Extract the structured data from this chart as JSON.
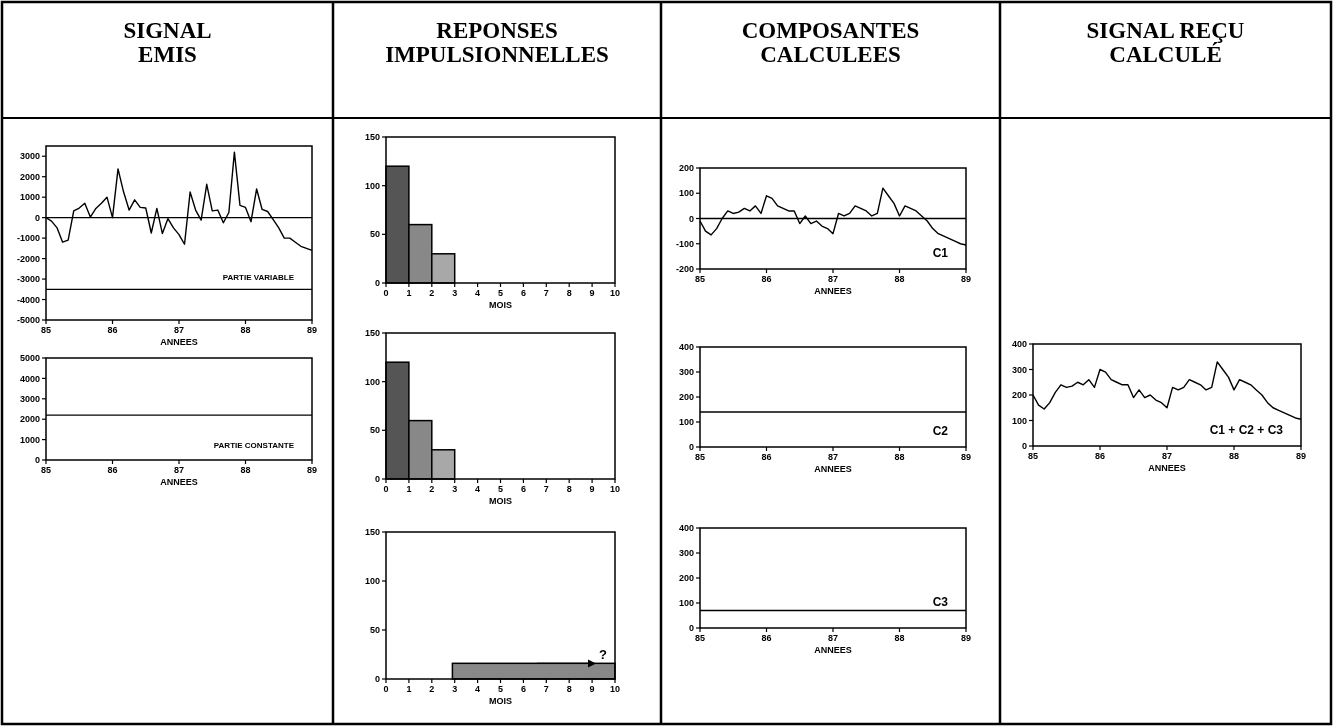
{
  "chart_data": [
    {
      "type": "line",
      "title": "SIGNAL\nEMIS",
      "xlabel": "ANNEES",
      "annotations": [
        "PARTIE VARIABLE"
      ],
      "xlim": [
        85,
        89
      ],
      "xticks": [
        85,
        86,
        87,
        88,
        89
      ],
      "ylim": [
        -5000,
        3500
      ],
      "yticks": [
        -5000,
        -4000,
        -3000,
        -2000,
        -1000,
        0,
        1000,
        2000,
        3000
      ],
      "grid": false,
      "ref_lines": [
        {
          "axis": "y",
          "value": 0
        },
        {
          "axis": "y",
          "value": -3500
        }
      ],
      "x": [
        85,
        85.083,
        85.167,
        85.25,
        85.333,
        85.417,
        85.5,
        85.583,
        85.667,
        85.75,
        85.833,
        85.917,
        86,
        86.083,
        86.167,
        86.25,
        86.333,
        86.417,
        86.5,
        86.583,
        86.667,
        86.75,
        86.833,
        86.917,
        87,
        87.083,
        87.167,
        87.25,
        87.333,
        87.417,
        87.5,
        87.583,
        87.667,
        87.75,
        87.833,
        87.917,
        88,
        88.083,
        88.167,
        88.25,
        88.333,
        88.417,
        88.5,
        88.583,
        88.667,
        88.75,
        88.833,
        88.917,
        89
      ],
      "series": [
        {
          "color": "#000000",
          "values": [
            0,
            -170,
            -500,
            -1200,
            -1100,
            330,
            470,
            700,
            30,
            450,
            700,
            1000,
            0,
            2380,
            1250,
            370,
            870,
            500,
            470,
            -750,
            450,
            -780,
            -50,
            -500,
            -830,
            -1300,
            1250,
            370,
            -120,
            1630,
            330,
            370,
            -250,
            250,
            3200,
            600,
            500,
            -200,
            1400,
            400,
            300,
            -100,
            -500,
            -1000,
            -1000,
            -1200,
            -1400,
            -1500,
            -1600
          ]
        }
      ]
    },
    {
      "type": "line",
      "xlabel": "ANNEES",
      "annotations": [
        "PARTIE CONSTANTE"
      ],
      "xlim": [
        85,
        89
      ],
      "xticks": [
        85,
        86,
        87,
        88,
        89
      ],
      "ylim": [
        0,
        5000
      ],
      "yticks": [
        0,
        1000,
        2000,
        3000,
        4000,
        5000
      ],
      "grid": false,
      "x": [
        85,
        89
      ],
      "series": [
        {
          "color": "#000000",
          "values": [
            2200,
            2200
          ]
        }
      ]
    },
    {
      "type": "histogram",
      "title": "REPONSES\nIMPULSIONNELLES",
      "xlabel": "MOIS",
      "xlim": [
        0,
        10
      ],
      "xticks": [
        0,
        1,
        2,
        3,
        4,
        5,
        6,
        7,
        8,
        9,
        10
      ],
      "ylim": [
        0,
        150
      ],
      "yticks": [
        0,
        50,
        100,
        150
      ],
      "grid": false,
      "bins": [
        0,
        1,
        2,
        3
      ],
      "values": [
        120,
        60,
        30
      ],
      "colors": [
        "#555555",
        "#888888",
        "#a8a8a8"
      ]
    },
    {
      "type": "histogram",
      "xlabel": "MOIS",
      "xlim": [
        0,
        10
      ],
      "xticks": [
        0,
        1,
        2,
        3,
        4,
        5,
        6,
        7,
        8,
        9,
        10
      ],
      "ylim": [
        0,
        150
      ],
      "yticks": [
        0,
        50,
        100,
        150
      ],
      "grid": false,
      "bins": [
        0,
        1,
        2,
        3
      ],
      "values": [
        120,
        60,
        30
      ],
      "colors": [
        "#555555",
        "#888888",
        "#a8a8a8"
      ]
    },
    {
      "type": "histogram",
      "xlabel": "MOIS",
      "annotations": [
        {
          "text": "?",
          "x": 9.3,
          "y": 20
        }
      ],
      "xlim": [
        0,
        10
      ],
      "xticks": [
        0,
        1,
        2,
        3,
        4,
        5,
        6,
        7,
        8,
        9,
        10
      ],
      "ylim": [
        0,
        150
      ],
      "yticks": [
        0,
        50,
        100,
        150
      ],
      "grid": false,
      "bins": [
        2.9,
        10
      ],
      "values": [
        16
      ],
      "colors": [
        "#888888"
      ]
    },
    {
      "type": "line",
      "title": "COMPOSANTES\nCALCULEES",
      "xlabel": "ANNEES",
      "annotations": [
        "C1"
      ],
      "xlim": [
        85,
        89
      ],
      "xticks": [
        85,
        86,
        87,
        88,
        89
      ],
      "ylim": [
        -200,
        200
      ],
      "yticks": [
        -200,
        -100,
        0,
        100,
        200
      ],
      "grid": false,
      "ref_lines": [
        {
          "axis": "y",
          "value": 0
        }
      ],
      "x": [
        85,
        85.083,
        85.167,
        85.25,
        85.333,
        85.417,
        85.5,
        85.583,
        85.667,
        85.75,
        85.833,
        85.917,
        86,
        86.083,
        86.167,
        86.25,
        86.333,
        86.417,
        86.5,
        86.583,
        86.667,
        86.75,
        86.833,
        86.917,
        87,
        87.083,
        87.167,
        87.25,
        87.333,
        87.417,
        87.5,
        87.583,
        87.667,
        87.75,
        87.833,
        87.917,
        88,
        88.083,
        88.167,
        88.25,
        88.333,
        88.417,
        88.5,
        88.583,
        88.667,
        88.75,
        88.833,
        88.917,
        89
      ],
      "series": [
        {
          "color": "#000000",
          "values": [
            -10,
            -50,
            -65,
            -40,
            0,
            30,
            20,
            25,
            40,
            30,
            50,
            20,
            90,
            80,
            50,
            40,
            30,
            30,
            -20,
            10,
            -20,
            -10,
            -30,
            -40,
            -60,
            20,
            10,
            20,
            50,
            40,
            30,
            10,
            20,
            120,
            90,
            60,
            10,
            50,
            40,
            30,
            10,
            -10,
            -40,
            -60,
            -70,
            -80,
            -90,
            -100,
            -105
          ]
        }
      ]
    },
    {
      "type": "line",
      "xlabel": "ANNEES",
      "annotations": [
        "C2"
      ],
      "xlim": [
        85,
        89
      ],
      "xticks": [
        85,
        86,
        87,
        88,
        89
      ],
      "ylim": [
        0,
        400
      ],
      "yticks": [
        0,
        100,
        200,
        300,
        400
      ],
      "grid": false,
      "x": [
        85,
        89
      ],
      "series": [
        {
          "color": "#000000",
          "values": [
            140,
            140
          ]
        }
      ]
    },
    {
      "type": "line",
      "xlabel": "ANNEES",
      "annotations": [
        "C3"
      ],
      "xlim": [
        85,
        89
      ],
      "xticks": [
        85,
        86,
        87,
        88,
        89
      ],
      "ylim": [
        0,
        400
      ],
      "yticks": [
        0,
        100,
        200,
        300,
        400
      ],
      "grid": false,
      "x": [
        85,
        89
      ],
      "series": [
        {
          "color": "#000000",
          "values": [
            70,
            70
          ]
        }
      ]
    },
    {
      "type": "line",
      "title": "SIGNAL REÇU\nCALCULÉ",
      "xlabel": "ANNEES",
      "annotations": [
        "C1 + C2  + C3"
      ],
      "xlim": [
        85,
        89
      ],
      "xticks": [
        85,
        86,
        87,
        88,
        89
      ],
      "ylim": [
        0,
        400
      ],
      "yticks": [
        0,
        100,
        200,
        300,
        400
      ],
      "grid": false,
      "x": [
        85,
        85.083,
        85.167,
        85.25,
        85.333,
        85.417,
        85.5,
        85.583,
        85.667,
        85.75,
        85.833,
        85.917,
        86,
        86.083,
        86.167,
        86.25,
        86.333,
        86.417,
        86.5,
        86.583,
        86.667,
        86.75,
        86.833,
        86.917,
        87,
        87.083,
        87.167,
        87.25,
        87.333,
        87.417,
        87.5,
        87.583,
        87.667,
        87.75,
        87.833,
        87.917,
        88,
        88.083,
        88.167,
        88.25,
        88.333,
        88.417,
        88.5,
        88.583,
        88.667,
        88.75,
        88.833,
        88.917,
        89
      ],
      "series": [
        {
          "color": "#000000",
          "values": [
            200,
            160,
            145,
            170,
            210,
            240,
            230,
            235,
            250,
            240,
            260,
            230,
            300,
            290,
            260,
            250,
            240,
            240,
            190,
            220,
            190,
            200,
            180,
            170,
            150,
            230,
            220,
            230,
            260,
            250,
            240,
            220,
            230,
            330,
            300,
            270,
            220,
            260,
            250,
            240,
            220,
            200,
            170,
            150,
            140,
            130,
            120,
            110,
            105
          ]
        }
      ]
    }
  ]
}
